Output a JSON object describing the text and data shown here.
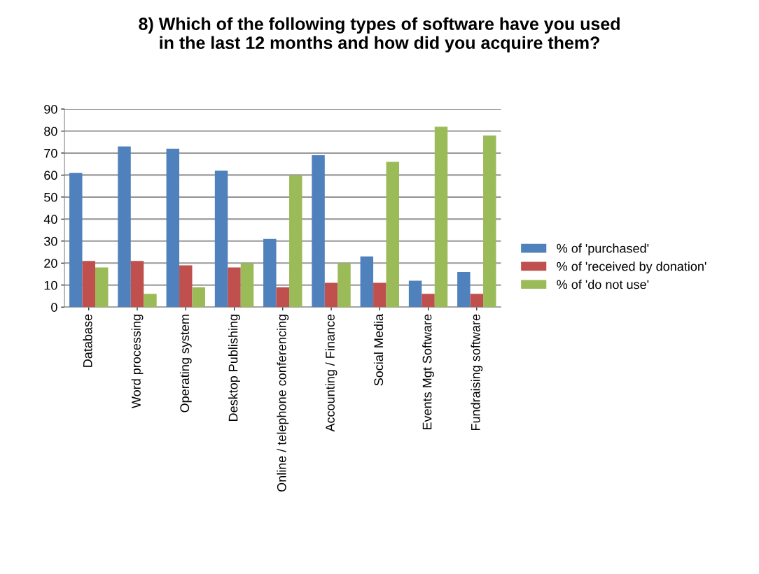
{
  "chart_data": {
    "type": "bar",
    "title": "8) Which of the following types of software have you used\nin the last 12 months and how did you acquire them?",
    "categories": [
      "Database",
      "Word processing",
      "Operating system",
      "Desktop Publishing",
      "Online / telephone conferencing",
      "Accounting / Finance",
      "Social Media",
      "Events Mgt Software",
      "Fundraising software"
    ],
    "series": [
      {
        "name": "% of 'purchased'",
        "color": "#4f81bd",
        "values": [
          61,
          73,
          72,
          62,
          31,
          69,
          23,
          12,
          16
        ]
      },
      {
        "name": "% of 'received by donation'",
        "color": "#c0504d",
        "values": [
          21,
          21,
          19,
          18,
          9,
          11,
          11,
          6,
          6
        ]
      },
      {
        "name": "% of 'do not use'",
        "color": "#9bbb59",
        "values": [
          18,
          6,
          9,
          20,
          60,
          20,
          66,
          82,
          78
        ]
      }
    ],
    "ylim": [
      0,
      90
    ],
    "yticks": [
      0,
      10,
      20,
      30,
      40,
      50,
      60,
      70,
      80,
      90
    ],
    "grid": "y",
    "legend": "right"
  }
}
